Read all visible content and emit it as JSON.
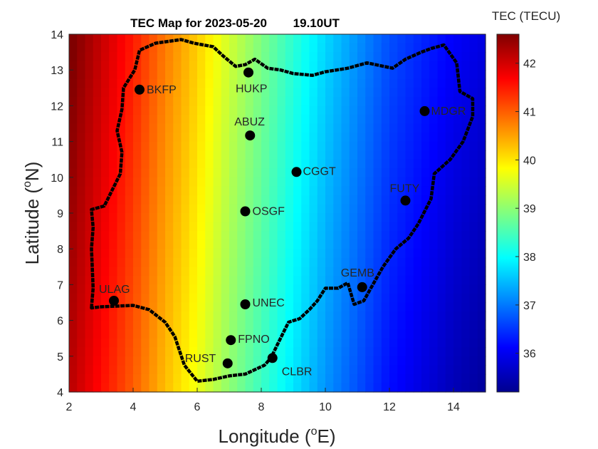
{
  "chart_data": {
    "type": "heatmap",
    "title_date": "TEC Map for 2023-05-20",
    "title_time": "19.10UT",
    "colorbar_title": "TEC (TECU)",
    "xlabel": "Longitude (",
    "xlabel_sup": "o",
    "xlabel_end": "E)",
    "ylabel": "Latitude (",
    "ylabel_sup": "o",
    "ylabel_end": "N)",
    "xlim": [
      2,
      15
    ],
    "ylim": [
      4,
      14
    ],
    "xticks": [
      "2",
      "4",
      "6",
      "8",
      "10",
      "12",
      "14"
    ],
    "yticks": [
      "4",
      "5",
      "6",
      "7",
      "8",
      "9",
      "10",
      "11",
      "12",
      "13",
      "14"
    ],
    "colormap": "jet",
    "clim": [
      35.2,
      42.6
    ],
    "colorbar_ticks": [
      "36",
      "37",
      "38",
      "39",
      "40",
      "41",
      "42"
    ],
    "field": {
      "lon": [
        2,
        3,
        4,
        5,
        6,
        7,
        8,
        9,
        10,
        11,
        12,
        13,
        14,
        15
      ],
      "tec_at_lat4": [
        42.2,
        41.6,
        41.0,
        40.3,
        39.7,
        39.0,
        38.4,
        37.8,
        37.2,
        36.7,
        36.2,
        35.9,
        35.6,
        35.4
      ],
      "lat_gradient": 0.05
    },
    "stations": [
      {
        "name": "BKFP",
        "lon": 4.2,
        "lat": 12.45
      },
      {
        "name": "HUKP",
        "lon": 7.6,
        "lat": 12.93
      },
      {
        "name": "ABUZ",
        "lon": 7.65,
        "lat": 11.17
      },
      {
        "name": "MDGR",
        "lon": 13.1,
        "lat": 11.85
      },
      {
        "name": "CGGT",
        "lon": 9.1,
        "lat": 10.15
      },
      {
        "name": "FUTY",
        "lon": 12.5,
        "lat": 9.35
      },
      {
        "name": "OSGF",
        "lon": 7.5,
        "lat": 9.05
      },
      {
        "name": "GEMB",
        "lon": 11.15,
        "lat": 6.93
      },
      {
        "name": "ULAG",
        "lon": 3.4,
        "lat": 6.55
      },
      {
        "name": "UNEC",
        "lon": 7.5,
        "lat": 6.45
      },
      {
        "name": "FPNO",
        "lon": 7.05,
        "lat": 5.45
      },
      {
        "name": "RUST",
        "lon": 6.95,
        "lat": 4.8
      },
      {
        "name": "CLBR",
        "lon": 8.35,
        "lat": 4.95
      }
    ],
    "border": [
      [
        2.7,
        6.35
      ],
      [
        2.75,
        6.9
      ],
      [
        2.72,
        7.6
      ],
      [
        2.7,
        8.0
      ],
      [
        2.75,
        8.6
      ],
      [
        2.7,
        9.1
      ],
      [
        3.1,
        9.2
      ],
      [
        3.6,
        10.1
      ],
      [
        3.65,
        10.7
      ],
      [
        3.5,
        11.3
      ],
      [
        3.65,
        11.9
      ],
      [
        3.7,
        12.5
      ],
      [
        4.05,
        13.0
      ],
      [
        4.2,
        13.55
      ],
      [
        4.7,
        13.75
      ],
      [
        5.5,
        13.85
      ],
      [
        5.9,
        13.75
      ],
      [
        6.5,
        13.65
      ],
      [
        6.8,
        13.4
      ],
      [
        7.2,
        13.1
      ],
      [
        7.5,
        13.15
      ],
      [
        7.8,
        13.3
      ],
      [
        8.2,
        13.05
      ],
      [
        8.6,
        13.0
      ],
      [
        9.0,
        12.9
      ],
      [
        9.6,
        12.85
      ],
      [
        10.0,
        12.95
      ],
      [
        10.7,
        13.05
      ],
      [
        11.3,
        13.2
      ],
      [
        12.1,
        13.05
      ],
      [
        12.5,
        13.3
      ],
      [
        13.0,
        13.5
      ],
      [
        13.3,
        13.6
      ],
      [
        13.7,
        13.7
      ],
      [
        14.1,
        13.2
      ],
      [
        14.2,
        12.4
      ],
      [
        14.6,
        12.2
      ],
      [
        14.6,
        11.7
      ],
      [
        14.3,
        11.0
      ],
      [
        13.9,
        10.5
      ],
      [
        13.4,
        10.1
      ],
      [
        13.3,
        9.4
      ],
      [
        12.9,
        8.7
      ],
      [
        12.6,
        8.3
      ],
      [
        12.2,
        8.0
      ],
      [
        11.8,
        7.5
      ],
      [
        11.45,
        6.95
      ],
      [
        11.2,
        6.55
      ],
      [
        10.9,
        6.45
      ],
      [
        10.7,
        7.05
      ],
      [
        10.4,
        6.9
      ],
      [
        10.0,
        6.9
      ],
      [
        9.75,
        6.55
      ],
      [
        9.5,
        6.3
      ],
      [
        9.2,
        6.05
      ],
      [
        8.85,
        5.95
      ],
      [
        8.6,
        5.5
      ],
      [
        8.3,
        4.95
      ],
      [
        8.1,
        4.75
      ],
      [
        7.5,
        4.5
      ],
      [
        7.0,
        4.45
      ],
      [
        6.5,
        4.35
      ],
      [
        6.0,
        4.3
      ],
      [
        5.6,
        4.75
      ],
      [
        5.3,
        5.55
      ],
      [
        5.0,
        5.95
      ],
      [
        4.5,
        6.3
      ],
      [
        4.0,
        6.42
      ],
      [
        3.5,
        6.4
      ],
      [
        3.0,
        6.38
      ],
      [
        2.7,
        6.35
      ]
    ]
  }
}
